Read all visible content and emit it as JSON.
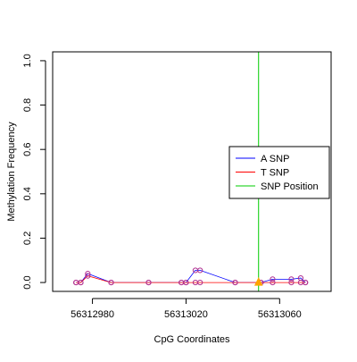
{
  "chart_data": {
    "type": "scatter",
    "title": "",
    "xlabel": "CpG Coordinates",
    "ylabel": "Methylation Frequency",
    "xlim": [
      56312963,
      56313082
    ],
    "ylim": [
      -0.04,
      1.04
    ],
    "x_ticks": [
      56312980,
      56313020,
      56313060
    ],
    "y_ticks": [
      0.0,
      0.2,
      0.4,
      0.6,
      0.8,
      1.0
    ],
    "y_tick_labels": [
      "0.0",
      "0.2",
      "0.4",
      "0.6",
      "0.8",
      "1.0"
    ],
    "grid": false,
    "legend_position": "right",
    "colors": {
      "a_snp": "#0000FF",
      "t_snp": "#FF0000",
      "snp_position": "#00CC00",
      "points": "#B03090",
      "snp_marker": "#FFA500",
      "axis": "#000000"
    },
    "series": [
      {
        "name": "A SNP",
        "x": [
          56312973,
          56312975,
          56312978,
          56312988,
          56313004,
          56313018,
          56313020,
          56313024,
          56313026,
          56313041,
          56313052,
          56313057,
          56313065,
          56313069,
          56313071
        ],
        "y": [
          0.0,
          0.0,
          0.04,
          0.0,
          0.0,
          0.0,
          0.0,
          0.055,
          0.055,
          0.0,
          0.0,
          0.015,
          0.015,
          0.02,
          0.0
        ]
      },
      {
        "name": "T SNP",
        "x": [
          56312973,
          56312975,
          56312978,
          56312988,
          56313004,
          56313018,
          56313020,
          56313024,
          56313026,
          56313041,
          56313052,
          56313057,
          56313065,
          56313069,
          56313071
        ],
        "y": [
          0.0,
          0.0,
          0.03,
          0.0,
          0.0,
          0.0,
          0.0,
          0.0,
          0.0,
          0.0,
          0.0,
          0.0,
          0.0,
          0.0,
          0.0
        ]
      }
    ],
    "snp_position": {
      "name": "SNP Position",
      "x": 56313051,
      "marker_y": 0.0
    }
  }
}
